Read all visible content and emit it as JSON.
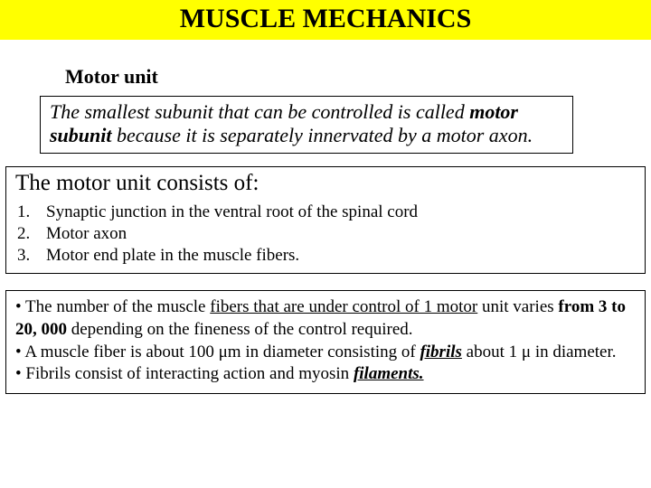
{
  "title": "MUSCLE MECHANICS",
  "subtitle": "Motor unit",
  "definition": {
    "pre": "The smallest subunit that can be controlled is called ",
    "bold": "motor subunit",
    "post": " because it is separately innervated by a motor axon."
  },
  "consists": {
    "heading": "The motor unit consists of:",
    "items": [
      "Synaptic junction in the ventral root of the spinal cord",
      "Motor axon",
      "Motor end plate in the muscle fibers."
    ]
  },
  "notes": {
    "n1a": "• The number of the muscle ",
    "n1u": "fibers that are under control of 1 motor",
    "n1b": " unit varies ",
    "n1bold": "from 3 to 20, 000",
    "n1c": " depending on the fineness of the control required.",
    "n2a": "• A muscle fiber is about 100 ",
    "mu1": "μ",
    "n2b": "m in diameter consisting of ",
    "fibrils": " fibrils",
    "n2c": " about 1 ",
    "mu2": "μ",
    "n2d": " in diameter.",
    "n3a": "• Fibrils consist of interacting action and myosin ",
    "filaments": " filaments."
  },
  "colors": {
    "title_bg": "#ffff00",
    "text": "#000000",
    "border": "#000000",
    "page_bg": "#ffffff"
  },
  "typography": {
    "title_fontsize": 30,
    "subtitle_fontsize": 22,
    "body_fontsize": 19,
    "font_family": "Times New Roman"
  }
}
